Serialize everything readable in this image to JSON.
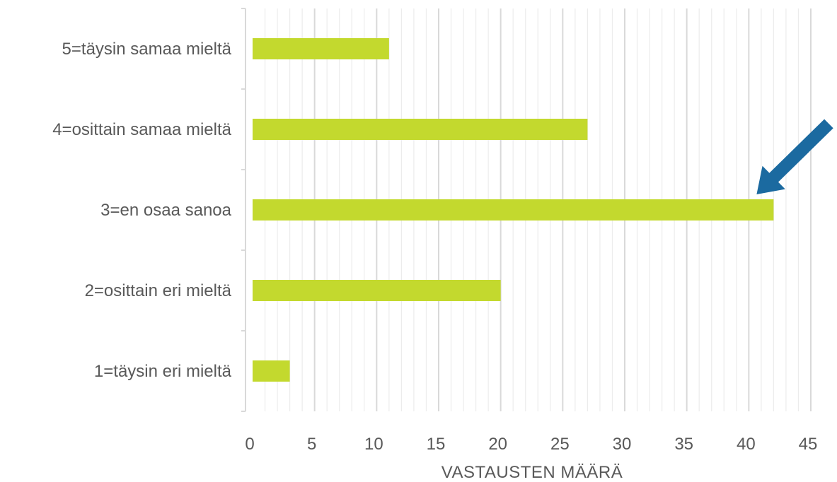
{
  "chart_data": {
    "type": "bar",
    "orientation": "horizontal",
    "categories": [
      "5=täysin samaa mieltä",
      "4=osittain samaa mieltä",
      "3=en osaa sanoa",
      "2=osittain eri mieltä",
      "1=täysin eri mieltä"
    ],
    "values": [
      11,
      27,
      42,
      20,
      3
    ],
    "xlabel": "VASTAUSTEN MÄÄRÄ",
    "ylabel": "",
    "title": "",
    "xlim": [
      0,
      45
    ],
    "major_ticks": [
      0,
      5,
      10,
      15,
      20,
      25,
      30,
      35,
      40,
      45
    ],
    "minor_tick_step": 1,
    "grid": true,
    "legend": "none",
    "colors": {
      "bar": "#c3d92e",
      "major_grid": "#d9d9d9",
      "minor_grid": "#ececec",
      "axis": "#d9d9d9",
      "arrow": "#1b6aa0",
      "text": "#595959"
    },
    "annotation": {
      "type": "arrow",
      "points_to_category": "3=en osaa sanoa",
      "points_to_value": 42
    }
  }
}
